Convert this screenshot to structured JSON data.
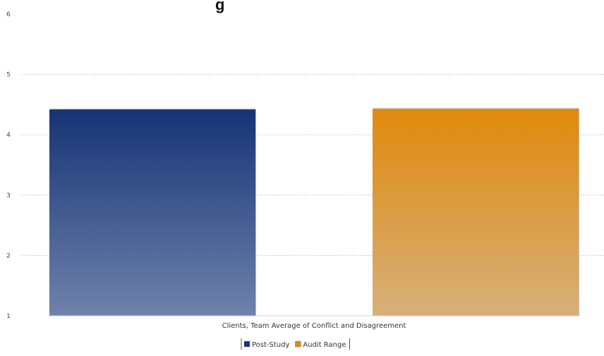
{
  "chart_data": {
    "type": "bar",
    "title": "g",
    "xlabel": "Clients, Team Average of Conflict and Disagreement",
    "ylabel": "",
    "ylim": [
      1,
      6
    ],
    "yticks": [
      {
        "value": 1,
        "label": "1"
      },
      {
        "value": 2,
        "label": "2"
      },
      {
        "value": 3,
        "label": "3"
      },
      {
        "value": 4,
        "label": "4"
      },
      {
        "value": 5,
        "label": "5"
      },
      {
        "value": 6,
        "label": "6"
      }
    ],
    "grid": true,
    "legend_position": "bottom",
    "categories": [
      "Clients, Team Average of Conflict and Disagreement"
    ],
    "series": [
      {
        "name": "Post-Study",
        "values": [
          4.42
        ],
        "color_top": "#163375",
        "color_bottom": "#6f82ab"
      },
      {
        "name": "Audit Range",
        "values": [
          4.43
        ],
        "color_top": "#e08a0d",
        "color_bottom": "#d6b07a"
      }
    ]
  }
}
